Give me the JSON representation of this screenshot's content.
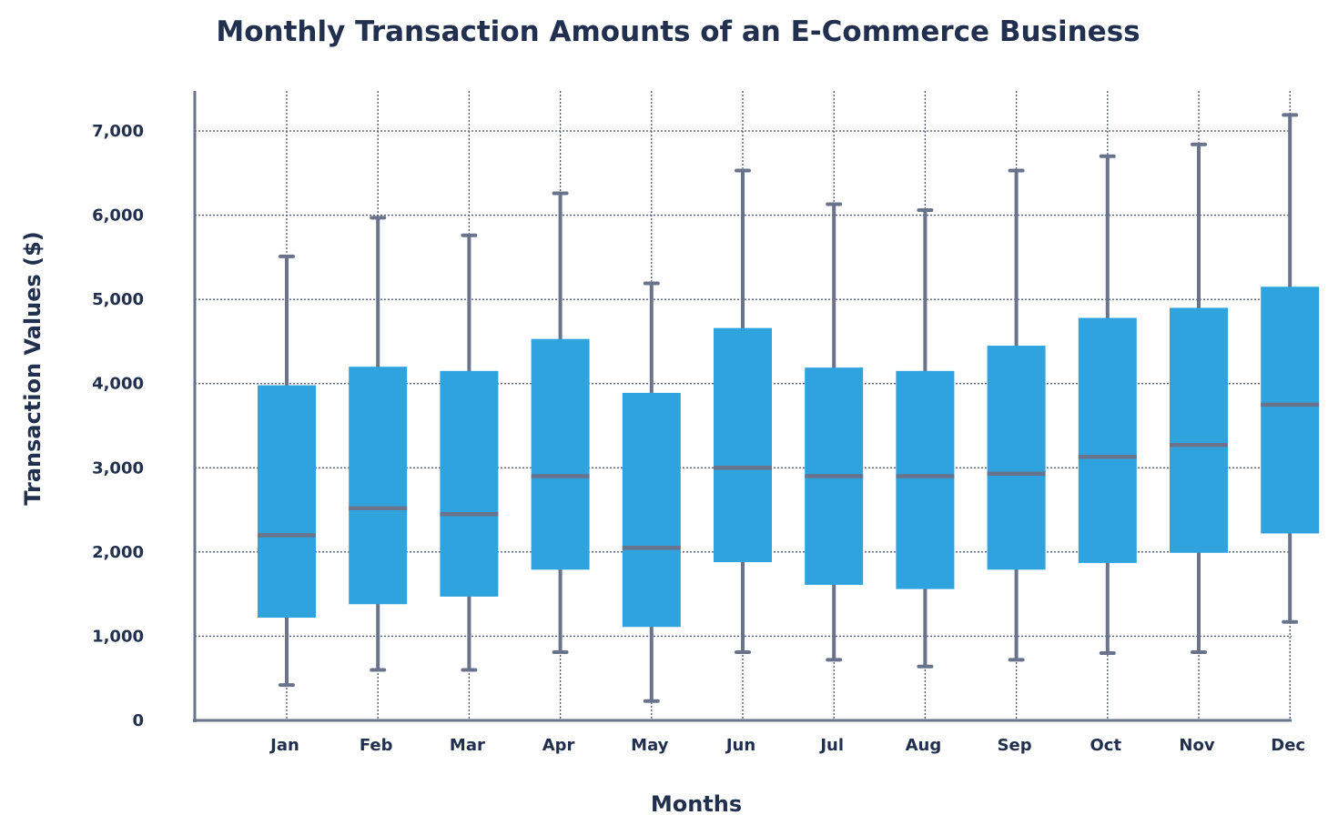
{
  "chart_data": {
    "type": "box",
    "title": "Monthly Transaction Amounts of an E-Commerce Business",
    "xlabel": "Months",
    "ylabel": "Transaction Values ($)",
    "ylim": [
      0,
      7500
    ],
    "yticks": [
      0,
      1000,
      2000,
      3000,
      4000,
      5000,
      6000,
      7000
    ],
    "ytick_labels": [
      "0",
      "1,000",
      "2,000",
      "3,000",
      "4,000",
      "5,000",
      "6,000",
      "7,000"
    ],
    "grid": true,
    "categories": [
      "Jan",
      "Feb",
      "Mar",
      "Apr",
      "May",
      "Jun",
      "Jul",
      "Aug",
      "Sep",
      "Oct",
      "Nov",
      "Dec"
    ],
    "boxes": [
      {
        "min": 420,
        "q1": 1220,
        "median": 2200,
        "q3": 3980,
        "max": 5510
      },
      {
        "min": 600,
        "q1": 1380,
        "median": 2520,
        "q3": 4200,
        "max": 5970
      },
      {
        "min": 600,
        "q1": 1470,
        "median": 2450,
        "q3": 4150,
        "max": 5760
      },
      {
        "min": 810,
        "q1": 1790,
        "median": 2900,
        "q3": 4530,
        "max": 6260
      },
      {
        "min": 230,
        "q1": 1110,
        "median": 2050,
        "q3": 3890,
        "max": 5190
      },
      {
        "min": 810,
        "q1": 1880,
        "median": 3000,
        "q3": 4660,
        "max": 6530
      },
      {
        "min": 720,
        "q1": 1610,
        "median": 2900,
        "q3": 4190,
        "max": 6130
      },
      {
        "min": 640,
        "q1": 1560,
        "median": 2900,
        "q3": 4150,
        "max": 6060
      },
      {
        "min": 720,
        "q1": 1790,
        "median": 2930,
        "q3": 4450,
        "max": 6530
      },
      {
        "min": 800,
        "q1": 1870,
        "median": 3130,
        "q3": 4780,
        "max": 6700
      },
      {
        "min": 810,
        "q1": 1990,
        "median": 3270,
        "q3": 4900,
        "max": 6840
      },
      {
        "min": 1170,
        "q1": 2220,
        "median": 3750,
        "q3": 5150,
        "max": 7190
      }
    ],
    "colors": {
      "box": "#2ea3de",
      "line": "#69748c",
      "text": "#22304f",
      "grid": "#4b5570"
    }
  }
}
